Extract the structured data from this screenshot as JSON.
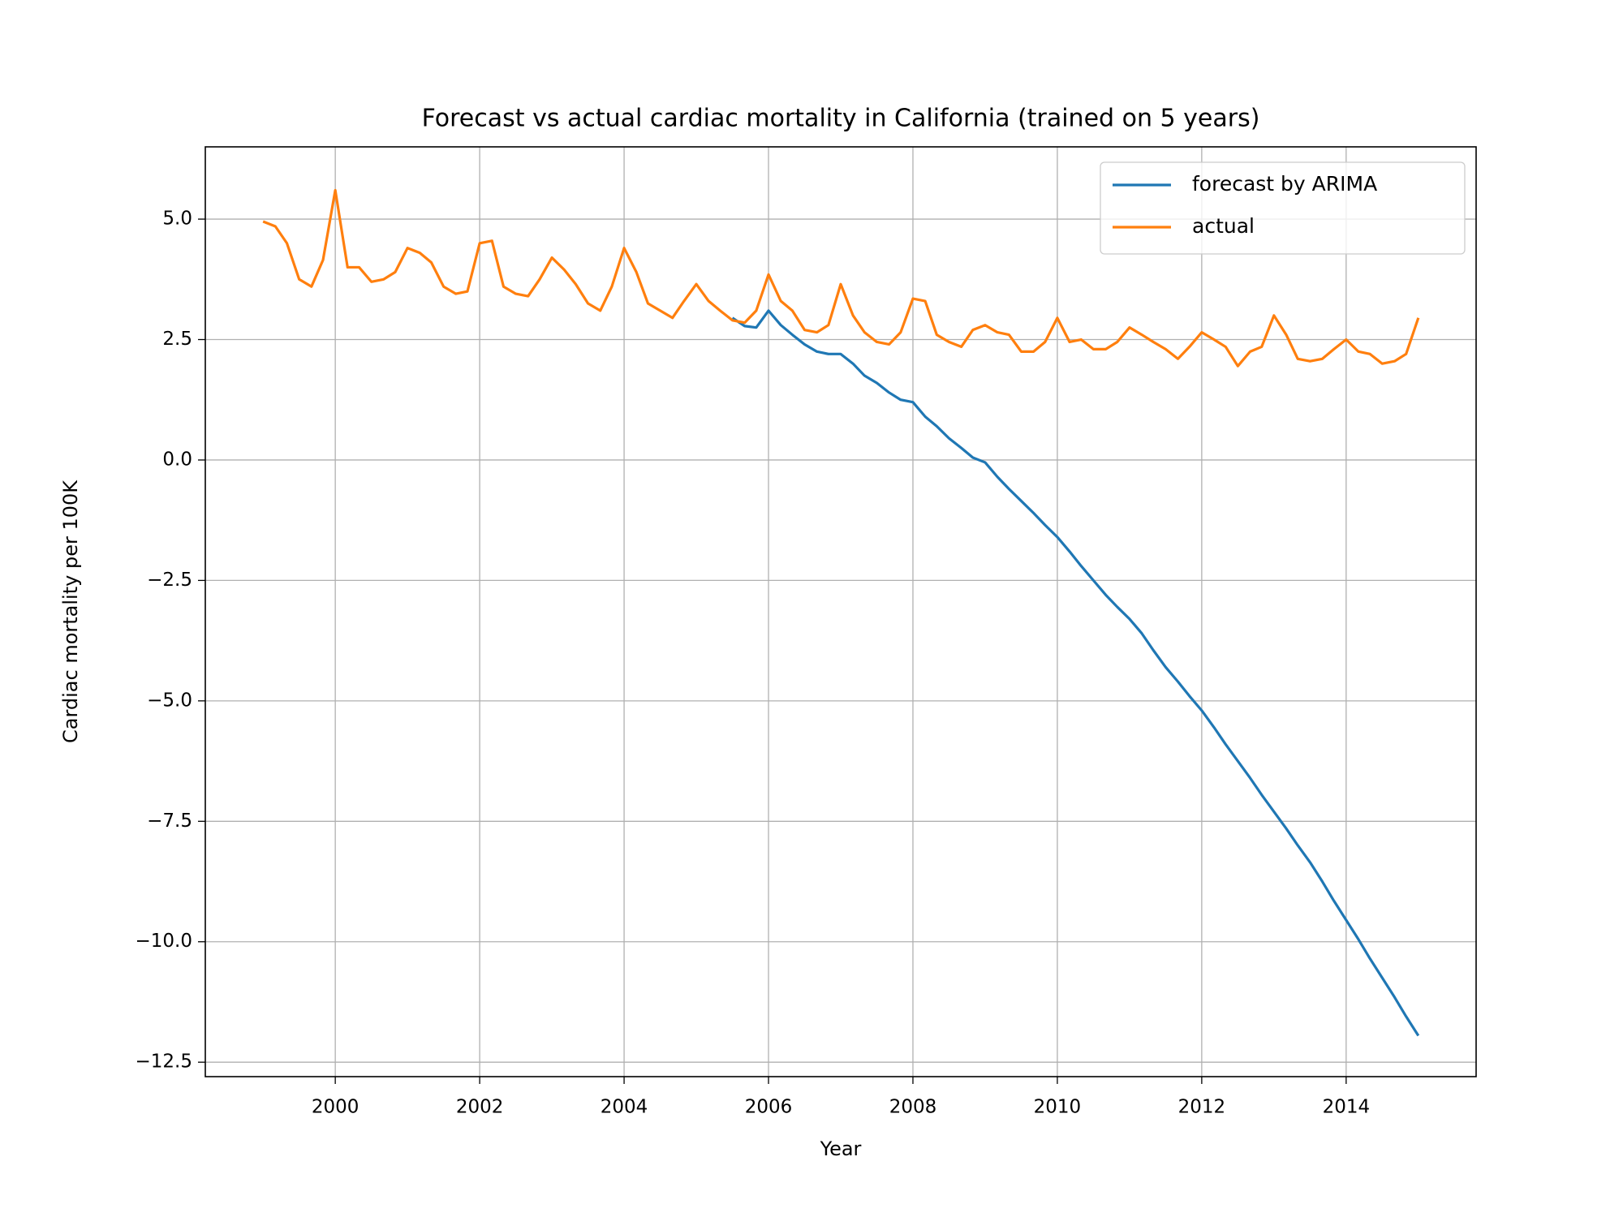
{
  "chart_data": {
    "type": "line",
    "title": "Forecast vs actual cardiac mortality in California (trained on 5 years)",
    "x_label": "Year",
    "y_label": "Cardiac mortality per 100K",
    "xlim": [
      1998.2,
      2015.8
    ],
    "ylim": [
      -12.8,
      6.5
    ],
    "xticks": [
      2000,
      2002,
      2004,
      2006,
      2008,
      2010,
      2012,
      2014
    ],
    "yticks": [
      {
        "value": -12.5,
        "label": "−12.5"
      },
      {
        "value": -10,
        "label": "−10.0"
      },
      {
        "value": -7.5,
        "label": "−7.5"
      },
      {
        "value": -5,
        "label": "−5.0"
      },
      {
        "value": -2.5,
        "label": "−2.5"
      },
      {
        "value": 0,
        "label": "0.0"
      },
      {
        "value": 2.5,
        "label": "2.5"
      },
      {
        "value": 5,
        "label": "5.0"
      }
    ],
    "grid": true,
    "legend": "upper right",
    "series": [
      {
        "name": "forecast by ARIMA",
        "color": "#1f77b4",
        "x": [
          2005.5,
          2005.67,
          2005.83,
          2006,
          2006.17,
          2006.33,
          2006.5,
          2006.67,
          2006.83,
          2007,
          2007.17,
          2007.33,
          2007.5,
          2007.67,
          2007.83,
          2008,
          2008.17,
          2008.33,
          2008.5,
          2008.67,
          2008.83,
          2009,
          2009.17,
          2009.33,
          2009.5,
          2009.67,
          2009.83,
          2010,
          2010.17,
          2010.33,
          2010.5,
          2010.67,
          2010.83,
          2011,
          2011.17,
          2011.33,
          2011.5,
          2011.67,
          2011.83,
          2012,
          2012.17,
          2012.33,
          2012.5,
          2012.67,
          2012.83,
          2013,
          2013.17,
          2013.33,
          2013.5,
          2013.67,
          2013.83,
          2014,
          2014.17,
          2014.33,
          2014.5,
          2014.67,
          2014.83,
          2015
        ],
        "values": [
          2.95,
          2.78,
          2.75,
          3.1,
          2.8,
          2.6,
          2.4,
          2.25,
          2.2,
          2.2,
          2.0,
          1.75,
          1.6,
          1.4,
          1.25,
          1.2,
          0.9,
          0.7,
          0.45,
          0.25,
          0.05,
          -0.05,
          -0.35,
          -0.6,
          -0.85,
          -1.1,
          -1.35,
          -1.6,
          -1.9,
          -2.2,
          -2.5,
          -2.8,
          -3.05,
          -3.3,
          -3.6,
          -3.95,
          -4.3,
          -4.6,
          -4.9,
          -5.2,
          -5.55,
          -5.9,
          -6.25,
          -6.6,
          -6.95,
          -7.3,
          -7.65,
          -8.0,
          -8.35,
          -8.75,
          -9.15,
          -9.55,
          -9.95,
          -10.35,
          -10.75,
          -11.15,
          -11.55,
          -11.95
        ]
      },
      {
        "name": "actual",
        "color": "#ff7f0e",
        "x": [
          1999,
          1999.17,
          1999.33,
          1999.5,
          1999.67,
          1999.83,
          2000,
          2000.17,
          2000.33,
          2000.5,
          2000.67,
          2000.83,
          2001,
          2001.17,
          2001.33,
          2001.5,
          2001.67,
          2001.83,
          2002,
          2002.17,
          2002.33,
          2002.5,
          2002.67,
          2002.83,
          2003,
          2003.17,
          2003.33,
          2003.5,
          2003.67,
          2003.83,
          2004,
          2004.17,
          2004.33,
          2004.5,
          2004.67,
          2004.83,
          2005,
          2005.17,
          2005.33,
          2005.5,
          2005.67,
          2005.83,
          2006,
          2006.17,
          2006.33,
          2006.5,
          2006.67,
          2006.83,
          2007,
          2007.17,
          2007.33,
          2007.5,
          2007.67,
          2007.83,
          2008,
          2008.17,
          2008.33,
          2008.5,
          2008.67,
          2008.83,
          2009,
          2009.17,
          2009.33,
          2009.5,
          2009.67,
          2009.83,
          2010,
          2010.17,
          2010.33,
          2010.5,
          2010.67,
          2010.83,
          2011,
          2011.17,
          2011.33,
          2011.5,
          2011.67,
          2011.83,
          2012,
          2012.17,
          2012.33,
          2012.5,
          2012.67,
          2012.83,
          2013,
          2013.17,
          2013.33,
          2013.5,
          2013.67,
          2013.83,
          2014,
          2014.17,
          2014.33,
          2014.5,
          2014.67,
          2014.83,
          2015
        ],
        "values": [
          4.95,
          4.85,
          4.5,
          3.75,
          3.6,
          4.15,
          5.6,
          4.0,
          4.0,
          3.7,
          3.75,
          3.9,
          4.4,
          4.3,
          4.1,
          3.6,
          3.45,
          3.5,
          4.5,
          4.55,
          3.6,
          3.45,
          3.4,
          3.75,
          4.2,
          3.95,
          3.65,
          3.25,
          3.1,
          3.6,
          4.4,
          3.9,
          3.25,
          3.1,
          2.95,
          3.3,
          3.65,
          3.3,
          3.1,
          2.9,
          2.85,
          3.1,
          3.85,
          3.3,
          3.1,
          2.7,
          2.65,
          2.8,
          3.65,
          3.0,
          2.65,
          2.45,
          2.4,
          2.65,
          3.35,
          3.3,
          2.6,
          2.45,
          2.35,
          2.7,
          2.8,
          2.65,
          2.6,
          2.25,
          2.25,
          2.45,
          2.95,
          2.45,
          2.5,
          2.3,
          2.3,
          2.45,
          2.75,
          2.6,
          2.45,
          2.3,
          2.1,
          2.35,
          2.65,
          2.5,
          2.35,
          1.95,
          2.25,
          2.35,
          3.0,
          2.6,
          2.1,
          2.05,
          2.1,
          2.3,
          2.5,
          2.25,
          2.2,
          2.0,
          2.05,
          2.2,
          2.95
        ]
      }
    ]
  }
}
